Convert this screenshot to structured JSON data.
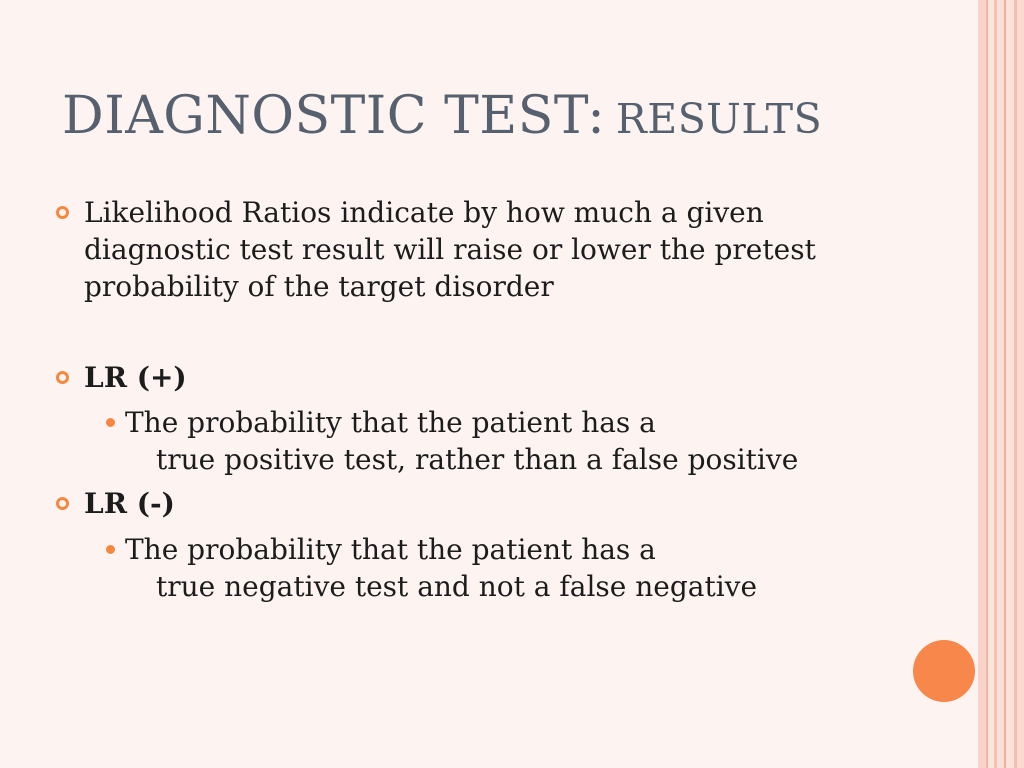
{
  "slide": {
    "title_main": "DIAGNOSTIC TEST:",
    "title_sub": "RESULTS",
    "bullets": [
      {
        "lines": [
          "Likelihood Ratios indicate by how much a given",
          "diagnostic test result will raise or lower the pretest",
          "probability of the target disorder"
        ]
      },
      {
        "label": "LR (+)",
        "sub": {
          "line1": "The probability that the patient has a",
          "line2": "true positive test, rather than a false positive"
        }
      },
      {
        "label": "LR (-)",
        "sub": {
          "line1": "The probability that the patient has a",
          "line2": "true negative test and not a false negative"
        }
      }
    ]
  },
  "theme": {
    "accent": "#f6873f",
    "title_color": "#56606f",
    "background": "#fdf4f1"
  }
}
